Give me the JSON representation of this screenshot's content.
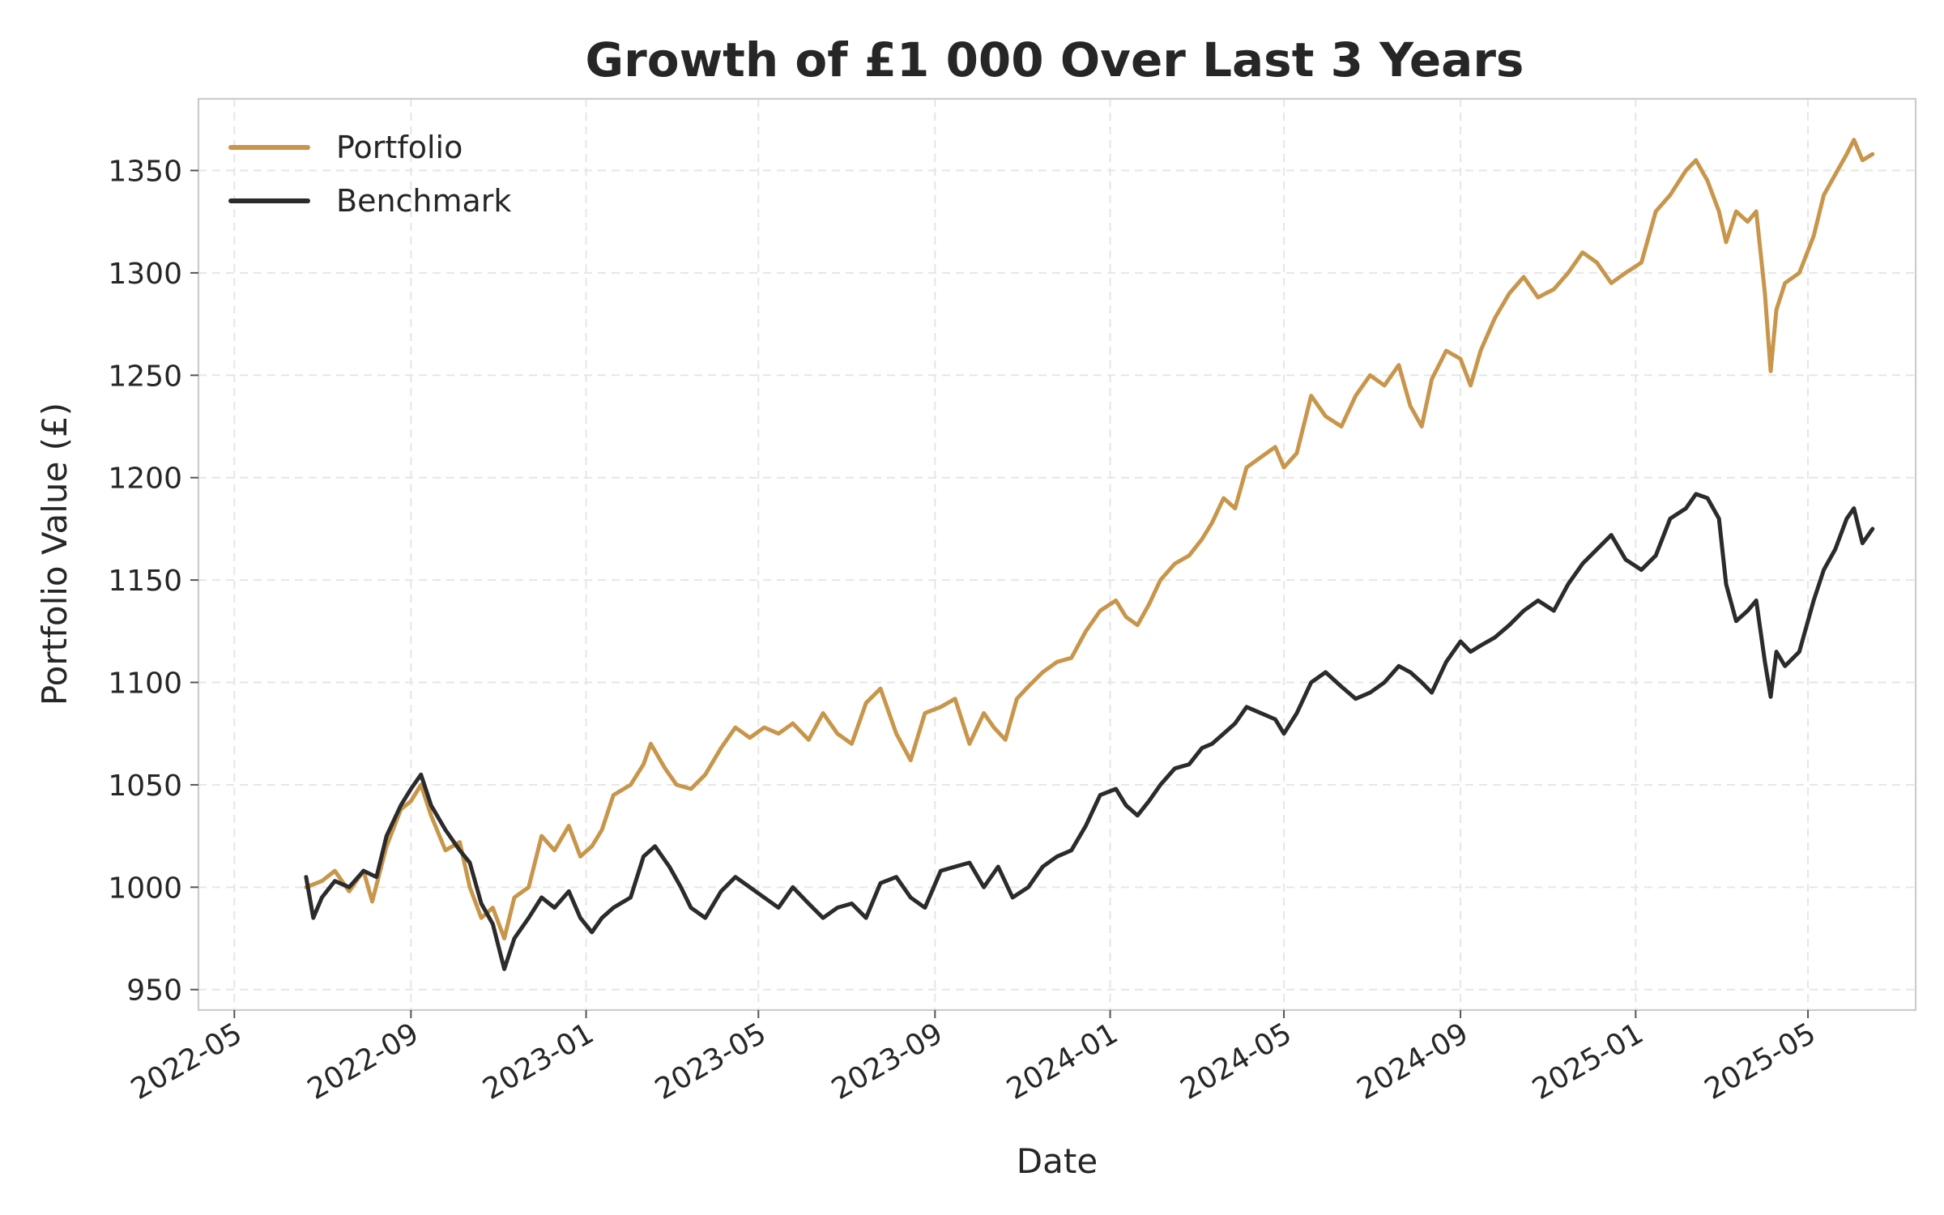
{
  "chart_data": {
    "type": "line",
    "title": "Growth of £1 000 Over Last 3 Years",
    "xlabel": "Date",
    "ylabel": "Portfolio Value (£)",
    "xlim": [
      "2022-04-06",
      "2025-07-15"
    ],
    "ylim": [
      940,
      1385
    ],
    "yticks": [
      950,
      1000,
      1050,
      1100,
      1150,
      1200,
      1250,
      1300,
      1350
    ],
    "xticks": [
      "2022-05",
      "2022-09",
      "2023-01",
      "2023-05",
      "2023-09",
      "2024-01",
      "2024-05",
      "2024-09",
      "2025-01",
      "2025-05"
    ],
    "grid": true,
    "legend_position": "upper-left",
    "series": [
      {
        "name": "Portfolio",
        "color": "#c8964b",
        "points": [
          [
            "2022-06-20",
            1000
          ],
          [
            "2022-07-01",
            1003
          ],
          [
            "2022-07-10",
            1008
          ],
          [
            "2022-07-20",
            998
          ],
          [
            "2022-07-30",
            1008
          ],
          [
            "2022-08-05",
            993
          ],
          [
            "2022-08-15",
            1020
          ],
          [
            "2022-08-25",
            1038
          ],
          [
            "2022-09-01",
            1042
          ],
          [
            "2022-09-08",
            1050
          ],
          [
            "2022-09-15",
            1035
          ],
          [
            "2022-09-25",
            1018
          ],
          [
            "2022-10-05",
            1022
          ],
          [
            "2022-10-12",
            1000
          ],
          [
            "2022-10-20",
            985
          ],
          [
            "2022-10-28",
            990
          ],
          [
            "2022-11-05",
            975
          ],
          [
            "2022-11-12",
            995
          ],
          [
            "2022-11-22",
            1000
          ],
          [
            "2022-12-01",
            1025
          ],
          [
            "2022-12-10",
            1018
          ],
          [
            "2022-12-20",
            1030
          ],
          [
            "2022-12-28",
            1015
          ],
          [
            "2023-01-05",
            1020
          ],
          [
            "2023-01-12",
            1028
          ],
          [
            "2023-01-20",
            1045
          ],
          [
            "2023-02-01",
            1050
          ],
          [
            "2023-02-10",
            1060
          ],
          [
            "2023-02-15",
            1070
          ],
          [
            "2023-02-25",
            1058
          ],
          [
            "2023-03-05",
            1050
          ],
          [
            "2023-03-15",
            1048
          ],
          [
            "2023-03-25",
            1055
          ],
          [
            "2023-04-05",
            1068
          ],
          [
            "2023-04-15",
            1078
          ],
          [
            "2023-04-25",
            1073
          ],
          [
            "2023-05-05",
            1078
          ],
          [
            "2023-05-15",
            1075
          ],
          [
            "2023-05-25",
            1080
          ],
          [
            "2023-06-05",
            1072
          ],
          [
            "2023-06-15",
            1085
          ],
          [
            "2023-06-25",
            1075
          ],
          [
            "2023-07-05",
            1070
          ],
          [
            "2023-07-15",
            1090
          ],
          [
            "2023-07-25",
            1097
          ],
          [
            "2023-08-05",
            1075
          ],
          [
            "2023-08-15",
            1062
          ],
          [
            "2023-08-25",
            1085
          ],
          [
            "2023-09-05",
            1088
          ],
          [
            "2023-09-15",
            1092
          ],
          [
            "2023-09-25",
            1070
          ],
          [
            "2023-10-05",
            1085
          ],
          [
            "2023-10-12",
            1078
          ],
          [
            "2023-10-20",
            1072
          ],
          [
            "2023-10-28",
            1092
          ],
          [
            "2023-11-05",
            1098
          ],
          [
            "2023-11-15",
            1105
          ],
          [
            "2023-11-25",
            1110
          ],
          [
            "2023-12-05",
            1112
          ],
          [
            "2023-12-15",
            1125
          ],
          [
            "2023-12-25",
            1135
          ],
          [
            "2024-01-05",
            1140
          ],
          [
            "2024-01-12",
            1132
          ],
          [
            "2024-01-20",
            1128
          ],
          [
            "2024-01-28",
            1138
          ],
          [
            "2024-02-05",
            1150
          ],
          [
            "2024-02-15",
            1158
          ],
          [
            "2024-02-25",
            1162
          ],
          [
            "2024-03-05",
            1170
          ],
          [
            "2024-03-12",
            1178
          ],
          [
            "2024-03-20",
            1190
          ],
          [
            "2024-03-28",
            1185
          ],
          [
            "2024-04-05",
            1205
          ],
          [
            "2024-04-15",
            1210
          ],
          [
            "2024-04-25",
            1215
          ],
          [
            "2024-05-01",
            1205
          ],
          [
            "2024-05-10",
            1212
          ],
          [
            "2024-05-20",
            1240
          ],
          [
            "2024-05-30",
            1230
          ],
          [
            "2024-06-10",
            1225
          ],
          [
            "2024-06-20",
            1240
          ],
          [
            "2024-06-30",
            1250
          ],
          [
            "2024-07-10",
            1245
          ],
          [
            "2024-07-20",
            1255
          ],
          [
            "2024-07-28",
            1235
          ],
          [
            "2024-08-05",
            1225
          ],
          [
            "2024-08-12",
            1248
          ],
          [
            "2024-08-22",
            1262
          ],
          [
            "2024-09-01",
            1258
          ],
          [
            "2024-09-08",
            1245
          ],
          [
            "2024-09-15",
            1262
          ],
          [
            "2024-09-25",
            1278
          ],
          [
            "2024-10-05",
            1290
          ],
          [
            "2024-10-15",
            1298
          ],
          [
            "2024-10-25",
            1288
          ],
          [
            "2024-11-05",
            1292
          ],
          [
            "2024-11-15",
            1300
          ],
          [
            "2024-11-25",
            1310
          ],
          [
            "2024-12-05",
            1305
          ],
          [
            "2024-12-15",
            1295
          ],
          [
            "2024-12-25",
            1300
          ],
          [
            "2025-01-05",
            1305
          ],
          [
            "2025-01-15",
            1330
          ],
          [
            "2025-01-25",
            1338
          ],
          [
            "2025-02-05",
            1350
          ],
          [
            "2025-02-12",
            1355
          ],
          [
            "2025-02-20",
            1345
          ],
          [
            "2025-02-28",
            1330
          ],
          [
            "2025-03-05",
            1315
          ],
          [
            "2025-03-12",
            1330
          ],
          [
            "2025-03-20",
            1325
          ],
          [
            "2025-03-26",
            1330
          ],
          [
            "2025-04-01",
            1290
          ],
          [
            "2025-04-05",
            1252
          ],
          [
            "2025-04-09",
            1282
          ],
          [
            "2025-04-15",
            1295
          ],
          [
            "2025-04-25",
            1300
          ],
          [
            "2025-05-05",
            1318
          ],
          [
            "2025-05-12",
            1338
          ],
          [
            "2025-05-20",
            1348
          ],
          [
            "2025-05-28",
            1358
          ],
          [
            "2025-06-02",
            1365
          ],
          [
            "2025-06-08",
            1355
          ],
          [
            "2025-06-15",
            1358
          ]
        ]
      },
      {
        "name": "Benchmark",
        "color": "#2b2b2b",
        "points": [
          [
            "2022-06-20",
            1005
          ],
          [
            "2022-06-25",
            985
          ],
          [
            "2022-07-01",
            995
          ],
          [
            "2022-07-10",
            1003
          ],
          [
            "2022-07-20",
            1000
          ],
          [
            "2022-07-30",
            1008
          ],
          [
            "2022-08-08",
            1005
          ],
          [
            "2022-08-15",
            1025
          ],
          [
            "2022-08-25",
            1040
          ],
          [
            "2022-09-01",
            1048
          ],
          [
            "2022-09-08",
            1055
          ],
          [
            "2022-09-15",
            1040
          ],
          [
            "2022-09-25",
            1028
          ],
          [
            "2022-10-05",
            1018
          ],
          [
            "2022-10-12",
            1012
          ],
          [
            "2022-10-20",
            992
          ],
          [
            "2022-10-28",
            982
          ],
          [
            "2022-11-05",
            960
          ],
          [
            "2022-11-12",
            975
          ],
          [
            "2022-11-22",
            985
          ],
          [
            "2022-12-01",
            995
          ],
          [
            "2022-12-10",
            990
          ],
          [
            "2022-12-20",
            998
          ],
          [
            "2022-12-28",
            985
          ],
          [
            "2023-01-05",
            978
          ],
          [
            "2023-01-12",
            985
          ],
          [
            "2023-01-20",
            990
          ],
          [
            "2023-02-01",
            995
          ],
          [
            "2023-02-10",
            1015
          ],
          [
            "2023-02-18",
            1020
          ],
          [
            "2023-02-28",
            1010
          ],
          [
            "2023-03-08",
            1000
          ],
          [
            "2023-03-15",
            990
          ],
          [
            "2023-03-25",
            985
          ],
          [
            "2023-04-05",
            998
          ],
          [
            "2023-04-15",
            1005
          ],
          [
            "2023-04-25",
            1000
          ],
          [
            "2023-05-05",
            995
          ],
          [
            "2023-05-15",
            990
          ],
          [
            "2023-05-25",
            1000
          ],
          [
            "2023-06-05",
            992
          ],
          [
            "2023-06-15",
            985
          ],
          [
            "2023-06-25",
            990
          ],
          [
            "2023-07-05",
            992
          ],
          [
            "2023-07-15",
            985
          ],
          [
            "2023-07-25",
            1002
          ],
          [
            "2023-08-05",
            1005
          ],
          [
            "2023-08-15",
            995
          ],
          [
            "2023-08-25",
            990
          ],
          [
            "2023-09-05",
            1008
          ],
          [
            "2023-09-15",
            1010
          ],
          [
            "2023-09-25",
            1012
          ],
          [
            "2023-10-05",
            1000
          ],
          [
            "2023-10-15",
            1010
          ],
          [
            "2023-10-25",
            995
          ],
          [
            "2023-11-05",
            1000
          ],
          [
            "2023-11-15",
            1010
          ],
          [
            "2023-11-25",
            1015
          ],
          [
            "2023-12-05",
            1018
          ],
          [
            "2023-12-15",
            1030
          ],
          [
            "2023-12-25",
            1045
          ],
          [
            "2024-01-05",
            1048
          ],
          [
            "2024-01-12",
            1040
          ],
          [
            "2024-01-20",
            1035
          ],
          [
            "2024-01-28",
            1042
          ],
          [
            "2024-02-05",
            1050
          ],
          [
            "2024-02-15",
            1058
          ],
          [
            "2024-02-25",
            1060
          ],
          [
            "2024-03-05",
            1068
          ],
          [
            "2024-03-12",
            1070
          ],
          [
            "2024-03-20",
            1075
          ],
          [
            "2024-03-28",
            1080
          ],
          [
            "2024-04-05",
            1088
          ],
          [
            "2024-04-15",
            1085
          ],
          [
            "2024-04-25",
            1082
          ],
          [
            "2024-05-01",
            1075
          ],
          [
            "2024-05-10",
            1085
          ],
          [
            "2024-05-20",
            1100
          ],
          [
            "2024-05-30",
            1105
          ],
          [
            "2024-06-10",
            1098
          ],
          [
            "2024-06-20",
            1092
          ],
          [
            "2024-06-30",
            1095
          ],
          [
            "2024-07-10",
            1100
          ],
          [
            "2024-07-20",
            1108
          ],
          [
            "2024-07-28",
            1105
          ],
          [
            "2024-08-05",
            1100
          ],
          [
            "2024-08-12",
            1095
          ],
          [
            "2024-08-22",
            1110
          ],
          [
            "2024-09-01",
            1120
          ],
          [
            "2024-09-08",
            1115
          ],
          [
            "2024-09-15",
            1118
          ],
          [
            "2024-09-25",
            1122
          ],
          [
            "2024-10-05",
            1128
          ],
          [
            "2024-10-15",
            1135
          ],
          [
            "2024-10-25",
            1140
          ],
          [
            "2024-11-05",
            1135
          ],
          [
            "2024-11-15",
            1148
          ],
          [
            "2024-11-25",
            1158
          ],
          [
            "2024-12-05",
            1165
          ],
          [
            "2024-12-15",
            1172
          ],
          [
            "2024-12-25",
            1160
          ],
          [
            "2025-01-05",
            1155
          ],
          [
            "2025-01-15",
            1162
          ],
          [
            "2025-01-25",
            1180
          ],
          [
            "2025-02-05",
            1185
          ],
          [
            "2025-02-12",
            1192
          ],
          [
            "2025-02-20",
            1190
          ],
          [
            "2025-02-28",
            1180
          ],
          [
            "2025-03-05",
            1148
          ],
          [
            "2025-03-12",
            1130
          ],
          [
            "2025-03-20",
            1135
          ],
          [
            "2025-03-26",
            1140
          ],
          [
            "2025-04-01",
            1110
          ],
          [
            "2025-04-05",
            1093
          ],
          [
            "2025-04-09",
            1115
          ],
          [
            "2025-04-15",
            1108
          ],
          [
            "2025-04-25",
            1115
          ],
          [
            "2025-05-05",
            1140
          ],
          [
            "2025-05-12",
            1155
          ],
          [
            "2025-05-20",
            1165
          ],
          [
            "2025-05-28",
            1180
          ],
          [
            "2025-06-02",
            1185
          ],
          [
            "2025-06-08",
            1168
          ],
          [
            "2025-06-15",
            1175
          ]
        ]
      }
    ]
  }
}
